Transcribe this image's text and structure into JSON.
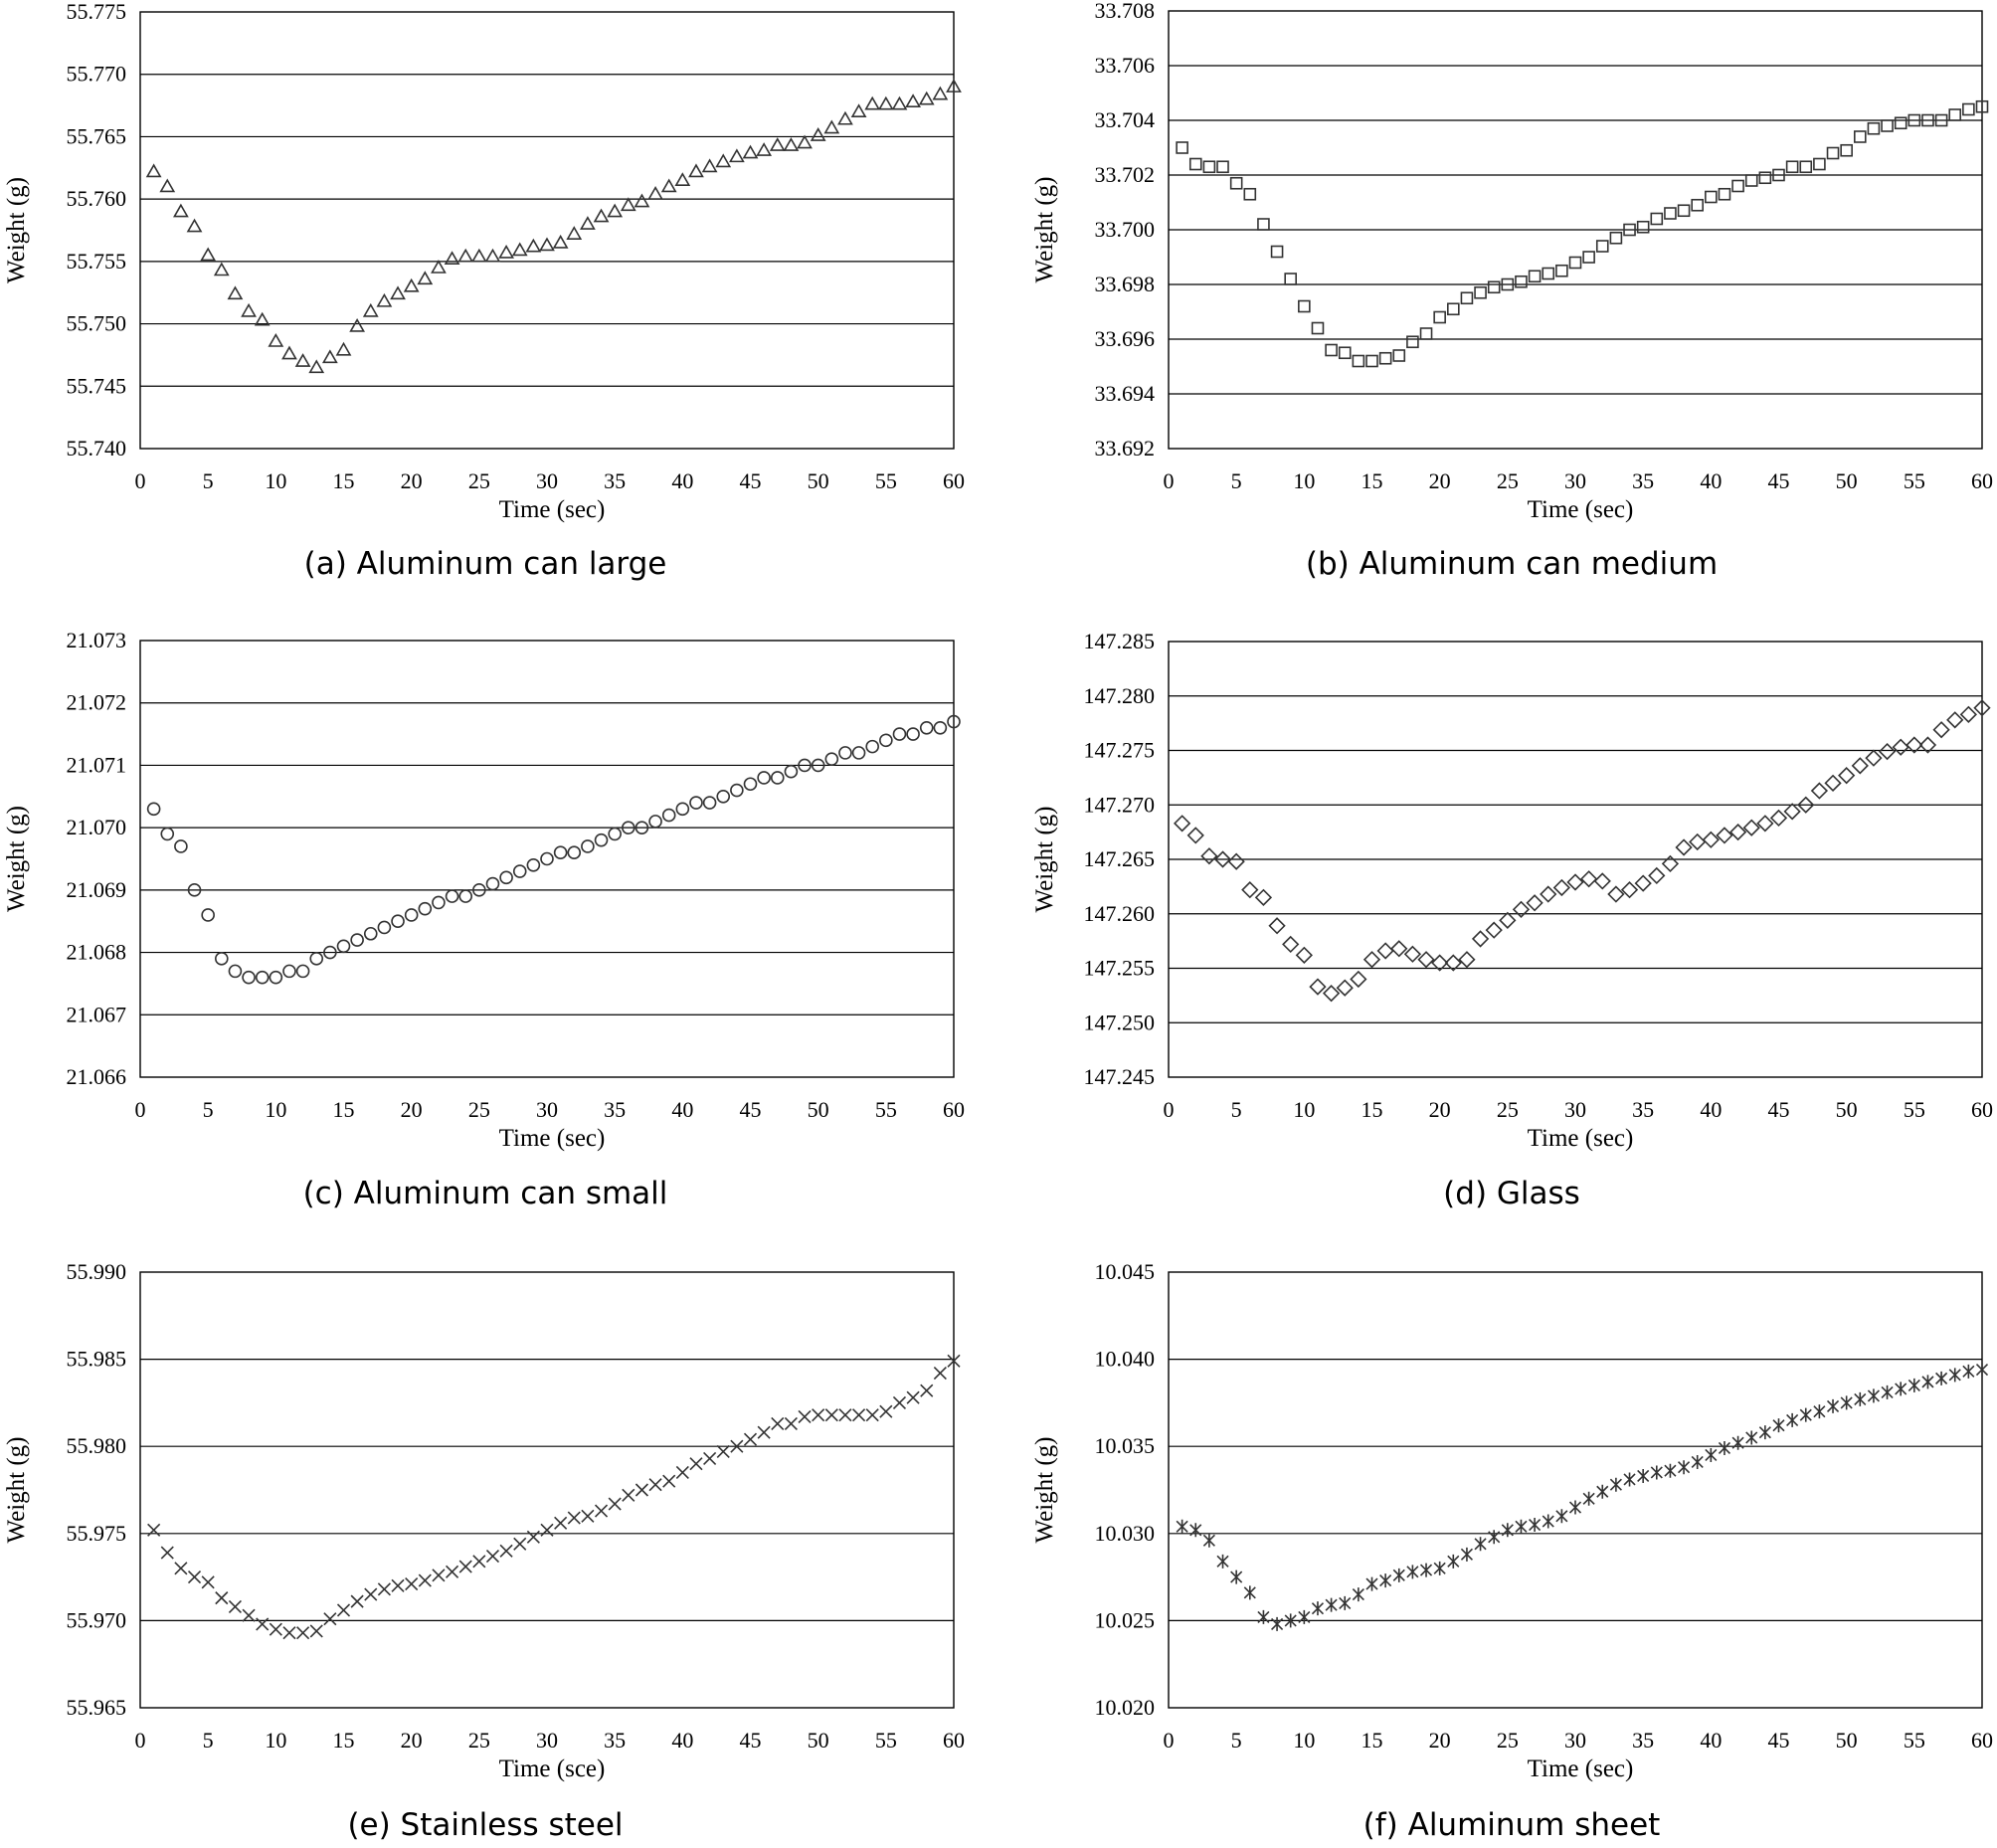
{
  "chart_data": [
    {
      "type": "scatter",
      "caption": "(a) Aluminum can large",
      "marker": "triangle",
      "xlabel": "Time (sec)",
      "ylabel": "Weight (g)",
      "xlim": [
        0,
        60
      ],
      "ylim": [
        55.74,
        55.775
      ],
      "xticks": [
        "0",
        "5",
        "10",
        "15",
        "20",
        "25",
        "30",
        "35",
        "40",
        "45",
        "50",
        "55",
        "60"
      ],
      "yticks": [
        "55.740",
        "55.745",
        "55.750",
        "55.755",
        "55.760",
        "55.765",
        "55.770",
        "55.775"
      ],
      "grid": "horizontal",
      "x": [
        1,
        2,
        3,
        4,
        5,
        6,
        7,
        8,
        9,
        10,
        11,
        12,
        13,
        14,
        15,
        16,
        17,
        18,
        19,
        20,
        21,
        22,
        23,
        24,
        25,
        26,
        27,
        28,
        29,
        30,
        31,
        32,
        33,
        34,
        35,
        36,
        37,
        38,
        39,
        40,
        41,
        42,
        43,
        44,
        45,
        46,
        47,
        48,
        49,
        50,
        51,
        52,
        53,
        54,
        55,
        56,
        57,
        58,
        59,
        60
      ],
      "y": [
        55.7622,
        55.761,
        55.759,
        55.7578,
        55.7555,
        55.7543,
        55.7524,
        55.751,
        55.7503,
        55.7486,
        55.7476,
        55.747,
        55.7465,
        55.7473,
        55.7479,
        55.7498,
        55.751,
        55.7518,
        55.7524,
        55.753,
        55.7536,
        55.7545,
        55.7552,
        55.7554,
        55.7554,
        55.7554,
        55.7557,
        55.7559,
        55.7562,
        55.7563,
        55.7565,
        55.7572,
        55.758,
        55.7586,
        55.759,
        55.7595,
        55.7598,
        55.7604,
        55.761,
        55.7615,
        55.7622,
        55.7626,
        55.763,
        55.7634,
        55.7637,
        55.7639,
        55.7643,
        55.7643,
        55.7645,
        55.7651,
        55.7657,
        55.7664,
        55.767,
        55.7676,
        55.7676,
        55.7676,
        55.7678,
        55.768,
        55.7684,
        55.769
      ]
    },
    {
      "type": "scatter",
      "caption": "(b) Aluminum can medium",
      "marker": "square",
      "xlabel": "Time (sec)",
      "ylabel": "Weight (g)",
      "xlim": [
        0,
        60
      ],
      "ylim": [
        33.692,
        33.708
      ],
      "xticks": [
        "0",
        "5",
        "10",
        "15",
        "20",
        "25",
        "30",
        "35",
        "40",
        "45",
        "50",
        "55",
        "60"
      ],
      "yticks": [
        "33.692",
        "33.694",
        "33.696",
        "33.698",
        "33.700",
        "33.702",
        "33.704",
        "33.706",
        "33.708"
      ],
      "grid": "horizontal",
      "x": [
        1,
        2,
        3,
        4,
        5,
        6,
        7,
        8,
        9,
        10,
        11,
        12,
        13,
        14,
        15,
        16,
        17,
        18,
        19,
        20,
        21,
        22,
        23,
        24,
        25,
        26,
        27,
        28,
        29,
        30,
        31,
        32,
        33,
        34,
        35,
        36,
        37,
        38,
        39,
        40,
        41,
        42,
        43,
        44,
        45,
        46,
        47,
        48,
        49,
        50,
        51,
        52,
        53,
        54,
        55,
        56,
        57,
        58,
        59,
        60
      ],
      "y": [
        33.703,
        33.7024,
        33.7023,
        33.7023,
        33.7017,
        33.7013,
        33.7002,
        33.6992,
        33.6982,
        33.6972,
        33.6964,
        33.6956,
        33.6955,
        33.6952,
        33.6952,
        33.6953,
        33.6954,
        33.6959,
        33.6962,
        33.6968,
        33.6971,
        33.6975,
        33.6977,
        33.6979,
        33.698,
        33.6981,
        33.6983,
        33.6984,
        33.6985,
        33.6988,
        33.699,
        33.6994,
        33.6997,
        33.7,
        33.7001,
        33.7004,
        33.7006,
        33.7007,
        33.7009,
        33.7012,
        33.7013,
        33.7016,
        33.7018,
        33.7019,
        33.702,
        33.7023,
        33.7023,
        33.7024,
        33.7028,
        33.7029,
        33.7034,
        33.7037,
        33.7038,
        33.7039,
        33.704,
        33.704,
        33.704,
        33.7042,
        33.7044,
        33.7045
      ]
    },
    {
      "type": "scatter",
      "caption": "(c) Aluminum can small",
      "marker": "circle",
      "xlabel": "Time (sec)",
      "ylabel": "Weight (g)",
      "xlim": [
        0,
        60
      ],
      "ylim": [
        21.066,
        21.073
      ],
      "xticks": [
        "0",
        "5",
        "10",
        "15",
        "20",
        "25",
        "30",
        "35",
        "40",
        "45",
        "50",
        "55",
        "60"
      ],
      "yticks": [
        "21.066",
        "21.067",
        "21.068",
        "21.069",
        "21.070",
        "21.071",
        "21.072",
        "21.073"
      ],
      "grid": "horizontal",
      "x": [
        1,
        2,
        3,
        4,
        5,
        6,
        7,
        8,
        9,
        10,
        11,
        12,
        13,
        14,
        15,
        16,
        17,
        18,
        19,
        20,
        21,
        22,
        23,
        24,
        25,
        26,
        27,
        28,
        29,
        30,
        31,
        32,
        33,
        34,
        35,
        36,
        37,
        38,
        39,
        40,
        41,
        42,
        43,
        44,
        45,
        46,
        47,
        48,
        49,
        50,
        51,
        52,
        53,
        54,
        55,
        56,
        57,
        58,
        59,
        60
      ],
      "y": [
        21.0703,
        21.0699,
        21.0697,
        21.069,
        21.0686,
        21.0679,
        21.0677,
        21.0676,
        21.0676,
        21.0676,
        21.0677,
        21.0677,
        21.0679,
        21.068,
        21.0681,
        21.0682,
        21.0683,
        21.0684,
        21.0685,
        21.0686,
        21.0687,
        21.0688,
        21.0689,
        21.0689,
        21.069,
        21.0691,
        21.0692,
        21.0693,
        21.0694,
        21.0695,
        21.0696,
        21.0696,
        21.0697,
        21.0698,
        21.0699,
        21.07,
        21.07,
        21.0701,
        21.0702,
        21.0703,
        21.0704,
        21.0704,
        21.0705,
        21.0706,
        21.0707,
        21.0708,
        21.0708,
        21.0709,
        21.071,
        21.071,
        21.0711,
        21.0712,
        21.0712,
        21.0713,
        21.0714,
        21.0715,
        21.0715,
        21.0716,
        21.0716,
        21.0717
      ]
    },
    {
      "type": "scatter",
      "caption": "(d) Glass",
      "marker": "diamond",
      "xlabel": "Time (sec)",
      "ylabel": "Weight (g)",
      "xlim": [
        0,
        60
      ],
      "ylim": [
        147.245,
        147.285
      ],
      "xticks": [
        "0",
        "5",
        "10",
        "15",
        "20",
        "25",
        "30",
        "35",
        "40",
        "45",
        "50",
        "55",
        "60"
      ],
      "yticks": [
        "147.245",
        "147.250",
        "147.255",
        "147.260",
        "147.265",
        "147.270",
        "147.275",
        "147.280",
        "147.285"
      ],
      "grid": "horizontal",
      "x": [
        1,
        2,
        3,
        4,
        5,
        6,
        7,
        8,
        9,
        10,
        11,
        12,
        13,
        14,
        15,
        16,
        17,
        18,
        19,
        20,
        21,
        22,
        23,
        24,
        25,
        26,
        27,
        28,
        29,
        30,
        31,
        32,
        33,
        34,
        35,
        36,
        37,
        38,
        39,
        40,
        41,
        42,
        43,
        44,
        45,
        46,
        47,
        48,
        49,
        50,
        51,
        52,
        53,
        54,
        55,
        56,
        57,
        58,
        59,
        60
      ],
      "y": [
        147.2683,
        147.2672,
        147.2653,
        147.265,
        147.2648,
        147.2622,
        147.2615,
        147.2589,
        147.2572,
        147.2562,
        147.2533,
        147.2527,
        147.2532,
        147.254,
        147.2558,
        147.2566,
        147.2568,
        147.2563,
        147.2558,
        147.2555,
        147.2555,
        147.2558,
        147.2577,
        147.2585,
        147.2594,
        147.2604,
        147.261,
        147.2618,
        147.2624,
        147.2629,
        147.2632,
        147.263,
        147.2618,
        147.2622,
        147.2628,
        147.2635,
        147.2646,
        147.2661,
        147.2666,
        147.2668,
        147.2672,
        147.2675,
        147.2679,
        147.2683,
        147.2688,
        147.2694,
        147.27,
        147.2713,
        147.272,
        147.2727,
        147.2736,
        147.2743,
        147.2749,
        147.2753,
        147.2755,
        147.2755,
        147.2769,
        147.2778,
        147.2783,
        147.2789
      ]
    },
    {
      "type": "scatter",
      "caption": "(e) Stainless steel",
      "marker": "x",
      "xlabel": "Time (sce)",
      "ylabel": "Weight (g)",
      "xlim": [
        0,
        60
      ],
      "ylim": [
        55.965,
        55.99
      ],
      "xticks": [
        "0",
        "5",
        "10",
        "15",
        "20",
        "25",
        "30",
        "35",
        "40",
        "45",
        "50",
        "55",
        "60"
      ],
      "yticks": [
        "55.965",
        "55.970",
        "55.975",
        "55.980",
        "55.985",
        "55.990"
      ],
      "grid": "horizontal",
      "x": [
        1,
        2,
        3,
        4,
        5,
        6,
        7,
        8,
        9,
        10,
        11,
        12,
        13,
        14,
        15,
        16,
        17,
        18,
        19,
        20,
        21,
        22,
        23,
        24,
        25,
        26,
        27,
        28,
        29,
        30,
        31,
        32,
        33,
        34,
        35,
        36,
        37,
        38,
        39,
        40,
        41,
        42,
        43,
        44,
        45,
        46,
        47,
        48,
        49,
        50,
        51,
        52,
        53,
        54,
        55,
        56,
        57,
        58,
        59,
        60
      ],
      "y": [
        55.9752,
        55.9739,
        55.973,
        55.9725,
        55.9722,
        55.9713,
        55.9708,
        55.9703,
        55.9698,
        55.9695,
        55.9693,
        55.9693,
        55.9694,
        55.9701,
        55.9706,
        55.9711,
        55.9715,
        55.9718,
        55.972,
        55.9721,
        55.9723,
        55.9726,
        55.9728,
        55.9731,
        55.9734,
        55.9737,
        55.974,
        55.9744,
        55.9748,
        55.9752,
        55.9756,
        55.9759,
        55.976,
        55.9763,
        55.9767,
        55.9772,
        55.9775,
        55.9778,
        55.978,
        55.9785,
        55.979,
        55.9793,
        55.9797,
        55.98,
        55.9804,
        55.9808,
        55.9813,
        55.9813,
        55.9817,
        55.9818,
        55.9818,
        55.9818,
        55.9818,
        55.9818,
        55.982,
        55.9825,
        55.9828,
        55.9832,
        55.9842,
        55.9849
      ]
    },
    {
      "type": "scatter",
      "caption": "(f) Aluminum sheet",
      "marker": "asterisk",
      "xlabel": "Time (sec)",
      "ylabel": "Weight (g)",
      "xlim": [
        0,
        60
      ],
      "ylim": [
        10.02,
        10.045
      ],
      "xticks": [
        "0",
        "5",
        "10",
        "15",
        "20",
        "25",
        "30",
        "35",
        "40",
        "45",
        "50",
        "55",
        "60"
      ],
      "yticks": [
        "10.020",
        "10.025",
        "10.030",
        "10.035",
        "10.040",
        "10.045"
      ],
      "grid": "horizontal",
      "x": [
        1,
        2,
        3,
        4,
        5,
        6,
        7,
        8,
        9,
        10,
        11,
        12,
        13,
        14,
        15,
        16,
        17,
        18,
        19,
        20,
        21,
        22,
        23,
        24,
        25,
        26,
        27,
        28,
        29,
        30,
        31,
        32,
        33,
        34,
        35,
        36,
        37,
        38,
        39,
        40,
        41,
        42,
        43,
        44,
        45,
        46,
        47,
        48,
        49,
        50,
        51,
        52,
        53,
        54,
        55,
        56,
        57,
        58,
        59,
        60
      ],
      "y": [
        10.0304,
        10.0302,
        10.0296,
        10.0284,
        10.0275,
        10.0266,
        10.0252,
        10.0248,
        10.025,
        10.0252,
        10.0257,
        10.0259,
        10.026,
        10.0265,
        10.0271,
        10.0273,
        10.0276,
        10.0278,
        10.0279,
        10.028,
        10.0284,
        10.0288,
        10.0294,
        10.0298,
        10.0302,
        10.0304,
        10.0305,
        10.0307,
        10.031,
        10.0315,
        10.032,
        10.0324,
        10.0328,
        10.0331,
        10.0333,
        10.0335,
        10.0336,
        10.0338,
        10.0341,
        10.0345,
        10.0349,
        10.0352,
        10.0355,
        10.0358,
        10.0362,
        10.0365,
        10.0368,
        10.037,
        10.0373,
        10.0375,
        10.0377,
        10.0379,
        10.0381,
        10.0383,
        10.0385,
        10.0387,
        10.0389,
        10.0391,
        10.0393,
        10.0394
      ]
    }
  ]
}
